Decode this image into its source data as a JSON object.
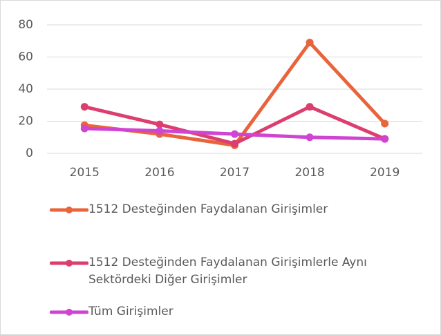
{
  "chart_data": {
    "type": "line",
    "categories": [
      "2015",
      "2016",
      "2017",
      "2018",
      "2019"
    ],
    "series": [
      {
        "name": "1512 Desteğinden Faydalanan Girişimler",
        "color": "#e8643a",
        "values": [
          17.5,
          12,
          5,
          69,
          18.5
        ]
      },
      {
        "name": "1512 Desteğinden Faydalanan Girişimlerle Aynı Sektördeki Diğer Girişimler",
        "color": "#dc3f6f",
        "values": [
          29,
          18,
          6,
          29,
          9
        ]
      },
      {
        "name": "Tüm Girişimler",
        "color": "#cf45d1",
        "values": [
          15.5,
          14,
          12,
          10,
          9
        ]
      }
    ],
    "ylim": [
      0,
      80
    ],
    "yticks": [
      0,
      20,
      40,
      60,
      80
    ],
    "grid": true,
    "legend": "bottom"
  }
}
